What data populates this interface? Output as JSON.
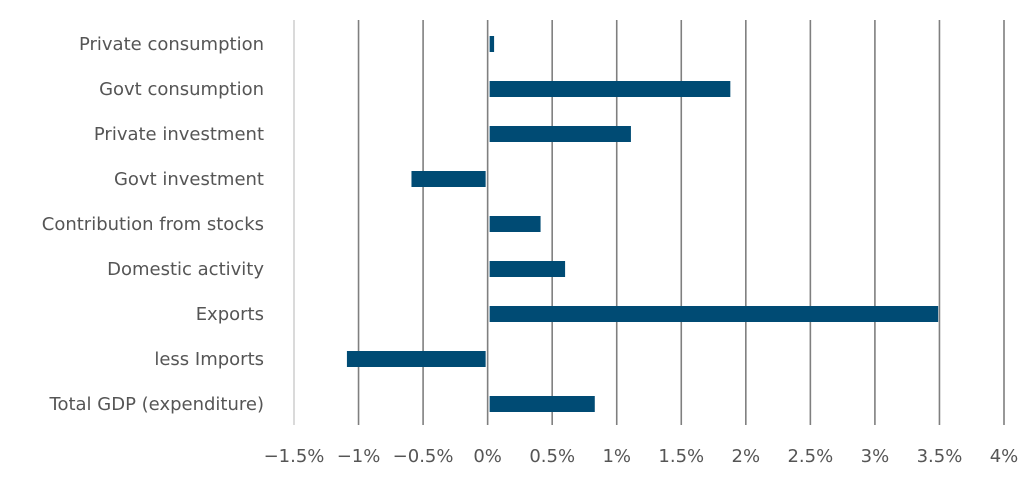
{
  "chart_data": {
    "type": "bar",
    "orientation": "horizontal",
    "categories": [
      "Private consumption",
      "Govt consumption",
      "Private investment",
      "Govt investment",
      "Contribution from stocks",
      "Domestic activity",
      "Exports",
      "less Imports",
      "Total GDP (expenditure)"
    ],
    "values": [
      0.05,
      1.88,
      1.11,
      -0.59,
      0.41,
      0.6,
      3.49,
      -1.09,
      0.83
    ],
    "xlim": [
      -1.5,
      4
    ],
    "xticks": [
      -1.5,
      -1,
      -0.5,
      0,
      0.5,
      1,
      1.5,
      2,
      2.5,
      3,
      3.5,
      4
    ],
    "xtick_labels": [
      "−1.5%",
      "−1%",
      "−0.5%",
      "0%",
      "0.5%",
      "1%",
      "1.5%",
      "2%",
      "2.5%",
      "3%",
      "3.5%",
      "4%"
    ],
    "grid": "vertical",
    "bar_color": "#004b74",
    "grid_color": "#7f7f7f",
    "title": "",
    "xlabel": "",
    "ylabel": ""
  }
}
